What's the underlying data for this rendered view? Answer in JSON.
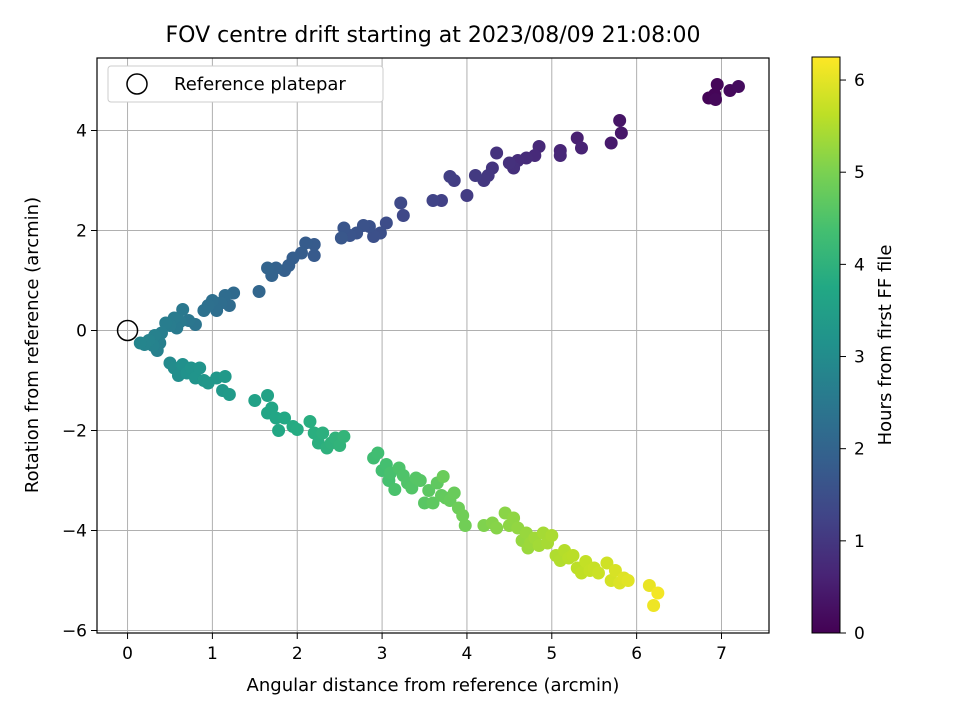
{
  "chart_data": {
    "type": "scatter",
    "title": "FOV centre drift starting at 2023/08/09 21:08:00",
    "xlabel": "Angular distance from reference (arcmin)",
    "ylabel": "Rotation from reference (arcmin)",
    "xlim": [
      -0.36,
      7.56
    ],
    "ylim": [
      -6.05,
      5.45
    ],
    "xticks": [
      0,
      1,
      2,
      3,
      4,
      5,
      6,
      7
    ],
    "yticks": [
      -6,
      -4,
      -2,
      0,
      2,
      4
    ],
    "grid": true,
    "legend": {
      "position": "top-left",
      "entries": [
        "Reference platepar"
      ]
    },
    "reference_point": {
      "x": 0,
      "y": 0,
      "label": "Reference platepar"
    },
    "colorbar": {
      "label": "Hours from first FF file",
      "range": [
        0,
        6.25
      ],
      "ticks": [
        0,
        1,
        2,
        3,
        4,
        5,
        6
      ],
      "colormap": "viridis"
    },
    "series": [
      {
        "points": [
          [
            6.85,
            4.65,
            0.05
          ],
          [
            6.92,
            4.72,
            0.08
          ],
          [
            6.95,
            4.92,
            0.1
          ],
          [
            6.93,
            4.62,
            0.12
          ],
          [
            7.1,
            4.8,
            0.15
          ],
          [
            7.2,
            4.88,
            0.18
          ],
          [
            5.8,
            4.2,
            0.35
          ],
          [
            5.82,
            3.95,
            0.4
          ],
          [
            5.7,
            3.75,
            0.45
          ],
          [
            5.3,
            3.85,
            0.55
          ],
          [
            5.35,
            3.65,
            0.6
          ],
          [
            5.1,
            3.6,
            0.65
          ],
          [
            5.1,
            3.5,
            0.68
          ],
          [
            4.85,
            3.68,
            0.72
          ],
          [
            4.8,
            3.5,
            0.75
          ],
          [
            4.7,
            3.45,
            0.78
          ],
          [
            4.6,
            3.4,
            0.8
          ],
          [
            4.55,
            3.25,
            0.85
          ],
          [
            4.5,
            3.35,
            0.88
          ],
          [
            4.35,
            3.55,
            0.9
          ],
          [
            4.3,
            3.25,
            0.95
          ],
          [
            4.25,
            3.1,
            1.0
          ],
          [
            4.2,
            3.0,
            1.02
          ],
          [
            4.1,
            3.1,
            1.05
          ],
          [
            4.0,
            2.7,
            1.1
          ],
          [
            3.85,
            3.0,
            1.12
          ],
          [
            3.8,
            3.08,
            1.15
          ],
          [
            3.7,
            2.6,
            1.2
          ],
          [
            3.6,
            2.6,
            1.25
          ],
          [
            3.25,
            2.3,
            1.35
          ],
          [
            3.22,
            2.55,
            1.38
          ],
          [
            3.05,
            2.15,
            1.45
          ],
          [
            2.98,
            1.95,
            1.5
          ],
          [
            2.9,
            1.88,
            1.52
          ],
          [
            2.85,
            2.08,
            1.55
          ],
          [
            2.78,
            2.1,
            1.58
          ],
          [
            2.7,
            1.95,
            1.6
          ],
          [
            2.62,
            1.9,
            1.62
          ],
          [
            2.55,
            2.05,
            1.65
          ],
          [
            2.52,
            1.85,
            1.68
          ],
          [
            2.2,
            1.5,
            1.75
          ],
          [
            2.2,
            1.72,
            1.78
          ],
          [
            2.1,
            1.75,
            1.8
          ],
          [
            2.05,
            1.55,
            1.82
          ],
          [
            1.95,
            1.45,
            1.85
          ],
          [
            1.9,
            1.3,
            1.88
          ],
          [
            1.85,
            1.2,
            1.9
          ],
          [
            1.75,
            1.25,
            1.95
          ],
          [
            1.7,
            1.1,
            1.98
          ],
          [
            1.65,
            1.25,
            2.0
          ],
          [
            1.55,
            0.78,
            2.05
          ],
          [
            1.25,
            0.75,
            2.15
          ],
          [
            1.2,
            0.5,
            2.18
          ],
          [
            1.15,
            0.7,
            2.2
          ],
          [
            1.1,
            0.55,
            2.22
          ],
          [
            1.05,
            0.4,
            2.25
          ],
          [
            1.0,
            0.6,
            2.28
          ],
          [
            0.95,
            0.5,
            2.3
          ],
          [
            0.9,
            0.4,
            2.32
          ],
          [
            0.8,
            0.12,
            2.4
          ],
          [
            0.72,
            0.2,
            2.45
          ],
          [
            0.65,
            0.42,
            2.5
          ],
          [
            0.62,
            0.18,
            2.52
          ],
          [
            0.58,
            0.05,
            2.55
          ],
          [
            0.55,
            0.25,
            2.58
          ],
          [
            0.5,
            0.1,
            2.6
          ],
          [
            0.45,
            0.15,
            2.62
          ],
          [
            0.4,
            -0.05,
            2.65
          ],
          [
            0.38,
            -0.25,
            2.68
          ],
          [
            0.35,
            -0.4,
            2.7
          ],
          [
            0.32,
            -0.1,
            2.72
          ],
          [
            0.3,
            -0.3,
            2.75
          ],
          [
            0.25,
            -0.2,
            2.78
          ],
          [
            0.2,
            -0.28,
            2.8
          ],
          [
            0.15,
            -0.25,
            2.82
          ],
          [
            0.5,
            -0.65,
            2.95
          ],
          [
            0.55,
            -0.75,
            3.0
          ],
          [
            0.6,
            -0.9,
            3.05
          ],
          [
            0.65,
            -0.68,
            3.1
          ],
          [
            0.7,
            -0.85,
            3.15
          ],
          [
            0.75,
            -0.75,
            3.18
          ],
          [
            0.8,
            -0.95,
            3.2
          ],
          [
            0.85,
            -0.75,
            3.22
          ],
          [
            0.9,
            -1.0,
            3.25
          ],
          [
            0.95,
            -1.05,
            3.28
          ],
          [
            1.05,
            -0.95,
            3.3
          ],
          [
            1.12,
            -1.2,
            3.32
          ],
          [
            1.15,
            -0.92,
            3.35
          ],
          [
            1.2,
            -1.28,
            3.38
          ],
          [
            1.5,
            -1.4,
            3.55
          ],
          [
            1.65,
            -1.3,
            3.6
          ],
          [
            1.65,
            -1.65,
            3.65
          ],
          [
            1.7,
            -1.55,
            3.68
          ],
          [
            1.75,
            -1.75,
            3.7
          ],
          [
            1.78,
            -2.0,
            3.72
          ],
          [
            1.85,
            -1.75,
            3.75
          ],
          [
            1.95,
            -1.92,
            3.8
          ],
          [
            2.0,
            -1.98,
            3.82
          ],
          [
            2.15,
            -1.82,
            3.88
          ],
          [
            2.2,
            -2.05,
            3.9
          ],
          [
            2.25,
            -2.25,
            3.92
          ],
          [
            2.3,
            -2.05,
            3.95
          ],
          [
            2.35,
            -2.35,
            3.98
          ],
          [
            2.4,
            -2.25,
            4.0
          ],
          [
            2.45,
            -2.15,
            4.02
          ],
          [
            2.5,
            -2.3,
            4.05
          ],
          [
            2.55,
            -2.12,
            4.08
          ],
          [
            2.9,
            -2.55,
            4.3
          ],
          [
            2.95,
            -2.45,
            4.32
          ],
          [
            3.0,
            -2.8,
            4.35
          ],
          [
            3.05,
            -2.68,
            4.38
          ],
          [
            3.08,
            -3.0,
            4.4
          ],
          [
            3.1,
            -2.85,
            4.42
          ],
          [
            3.15,
            -3.18,
            4.45
          ],
          [
            3.2,
            -2.75,
            4.48
          ],
          [
            3.25,
            -2.9,
            4.5
          ],
          [
            3.3,
            -3.05,
            4.52
          ],
          [
            3.35,
            -3.15,
            4.55
          ],
          [
            3.4,
            -2.95,
            4.58
          ],
          [
            3.45,
            -3.0,
            4.6
          ],
          [
            3.5,
            -3.45,
            4.62
          ],
          [
            3.55,
            -3.2,
            4.65
          ],
          [
            3.6,
            -3.45,
            4.68
          ],
          [
            3.65,
            -3.05,
            4.7
          ],
          [
            3.7,
            -3.3,
            4.72
          ],
          [
            3.75,
            -3.35,
            4.75
          ],
          [
            3.8,
            -3.4,
            4.78
          ],
          [
            3.85,
            -3.25,
            4.8
          ],
          [
            3.72,
            -2.92,
            4.82
          ],
          [
            3.9,
            -3.55,
            4.85
          ],
          [
            3.95,
            -3.7,
            4.88
          ],
          [
            3.98,
            -3.9,
            4.9
          ],
          [
            4.2,
            -3.9,
            5.05
          ],
          [
            4.3,
            -3.85,
            5.1
          ],
          [
            4.35,
            -3.95,
            5.12
          ],
          [
            4.45,
            -3.65,
            5.15
          ],
          [
            4.5,
            -3.9,
            5.18
          ],
          [
            4.55,
            -3.75,
            5.2
          ],
          [
            4.6,
            -3.95,
            5.22
          ],
          [
            4.65,
            -4.2,
            5.25
          ],
          [
            4.7,
            -4.05,
            5.28
          ],
          [
            4.72,
            -4.35,
            5.3
          ],
          [
            4.75,
            -4.25,
            5.32
          ],
          [
            4.8,
            -4.15,
            5.35
          ],
          [
            4.85,
            -4.3,
            5.38
          ],
          [
            4.9,
            -4.05,
            5.4
          ],
          [
            4.95,
            -4.25,
            5.42
          ],
          [
            5.0,
            -4.1,
            5.45
          ],
          [
            5.05,
            -4.5,
            5.5
          ],
          [
            5.1,
            -4.6,
            5.52
          ],
          [
            5.15,
            -4.4,
            5.55
          ],
          [
            5.2,
            -4.55,
            5.58
          ],
          [
            5.25,
            -4.5,
            5.6
          ],
          [
            5.3,
            -4.75,
            5.62
          ],
          [
            5.35,
            -4.85,
            5.65
          ],
          [
            5.4,
            -4.62,
            5.68
          ],
          [
            5.45,
            -4.8,
            5.7
          ],
          [
            5.5,
            -4.75,
            5.72
          ],
          [
            5.55,
            -4.85,
            5.75
          ],
          [
            5.65,
            -4.65,
            5.8
          ],
          [
            5.7,
            -5.0,
            5.85
          ],
          [
            5.75,
            -4.8,
            5.88
          ],
          [
            5.8,
            -5.05,
            5.92
          ],
          [
            5.85,
            -4.95,
            5.95
          ],
          [
            5.9,
            -5.0,
            5.98
          ],
          [
            6.15,
            -5.1,
            6.05
          ],
          [
            6.2,
            -5.5,
            6.1
          ],
          [
            6.25,
            -5.25,
            6.15
          ]
        ]
      }
    ]
  }
}
